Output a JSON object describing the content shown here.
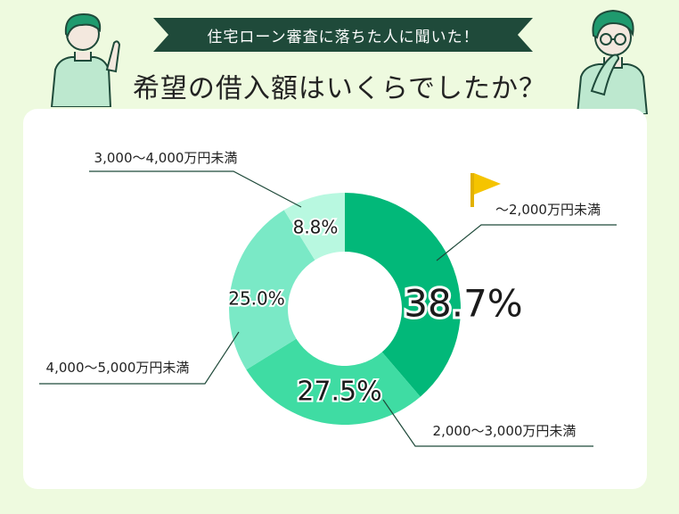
{
  "header": {
    "banner": "住宅ローン審査に落ちた人に聞いた！",
    "title": "希望の借入額はいくらでしたか？"
  },
  "icons": [
    "person-pointing-icon",
    "person-thinking-icon",
    "flag-icon"
  ],
  "colors": {
    "background": "#eefadf",
    "banner": "#1f4a3a",
    "accent": "#f5c400"
  },
  "chart_data": {
    "type": "pie",
    "donut": true,
    "categories": [
      "〜2,000万円未満",
      "2,000〜3,000万円未満",
      "4,000〜5,000万円未満",
      "3,000〜4,000万円未満"
    ],
    "values": [
      38.7,
      27.5,
      25.0,
      8.8
    ],
    "value_labels": [
      "38.7%",
      "27.5%",
      "25.0%",
      "8.8%"
    ],
    "colors": [
      "#02b879",
      "#3fdca3",
      "#7ae9c6",
      "#b8f8e0"
    ],
    "highlight": "〜2,000万円未満"
  }
}
